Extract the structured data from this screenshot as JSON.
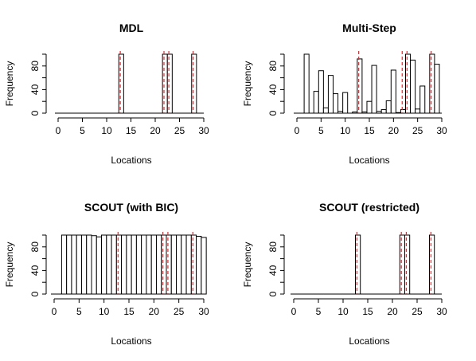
{
  "chart_data": [
    {
      "type": "bar",
      "title": "MDL",
      "xlabel": "Locations",
      "ylabel": "Frequency",
      "xlim": [
        0,
        30
      ],
      "ylim": [
        0,
        100
      ],
      "xticks": [
        "0",
        "5",
        "10",
        "15",
        "20",
        "25",
        "30"
      ],
      "yticks": [
        "0",
        "40",
        "80"
      ],
      "bars": [
        {
          "x": 13,
          "value": 100
        },
        {
          "x": 22,
          "value": 100
        },
        {
          "x": 23,
          "value": 100
        },
        {
          "x": 28,
          "value": 100
        }
      ],
      "true_locations": [
        13,
        22,
        23,
        28
      ],
      "marker_color": "#e8262b"
    },
    {
      "type": "bar",
      "title": "Multi-Step",
      "xlabel": "Locations",
      "ylabel": "Frequency",
      "xlim": [
        0,
        30
      ],
      "ylim": [
        0,
        100
      ],
      "xticks": [
        "0",
        "5",
        "10",
        "15",
        "20",
        "25",
        "30"
      ],
      "yticks": [
        "0",
        "40",
        "80"
      ],
      "bars": [
        {
          "x": 2,
          "value": 100
        },
        {
          "x": 4,
          "value": 37
        },
        {
          "x": 5,
          "value": 72
        },
        {
          "x": 6,
          "value": 9
        },
        {
          "x": 7,
          "value": 64
        },
        {
          "x": 8,
          "value": 33
        },
        {
          "x": 9,
          "value": 3
        },
        {
          "x": 10,
          "value": 35
        },
        {
          "x": 12,
          "value": 2
        },
        {
          "x": 13,
          "value": 92
        },
        {
          "x": 14,
          "value": 2
        },
        {
          "x": 15,
          "value": 20
        },
        {
          "x": 16,
          "value": 81
        },
        {
          "x": 17,
          "value": 3
        },
        {
          "x": 18,
          "value": 6
        },
        {
          "x": 19,
          "value": 21
        },
        {
          "x": 20,
          "value": 73
        },
        {
          "x": 21,
          "value": 1
        },
        {
          "x": 22,
          "value": 6
        },
        {
          "x": 23,
          "value": 100
        },
        {
          "x": 24,
          "value": 90
        },
        {
          "x": 25,
          "value": 7
        },
        {
          "x": 26,
          "value": 46
        },
        {
          "x": 28,
          "value": 100
        },
        {
          "x": 29,
          "value": 83
        }
      ],
      "true_locations": [
        13,
        22,
        23,
        28
      ],
      "marker_color": "#e8262b"
    },
    {
      "type": "bar",
      "title": "SCOUT (with BIC)",
      "xlabel": "Locations",
      "ylabel": "Frequency",
      "xlim": [
        0,
        30
      ],
      "ylim": [
        0,
        100
      ],
      "xticks": [
        "0",
        "5",
        "10",
        "15",
        "20",
        "25",
        "30"
      ],
      "yticks": [
        "0",
        "40",
        "80"
      ],
      "bars": [
        {
          "x": 1,
          "value": 0
        },
        {
          "x": 2,
          "value": 100
        },
        {
          "x": 3,
          "value": 100
        },
        {
          "x": 4,
          "value": 100
        },
        {
          "x": 5,
          "value": 100
        },
        {
          "x": 6,
          "value": 100
        },
        {
          "x": 7,
          "value": 100
        },
        {
          "x": 8,
          "value": 99
        },
        {
          "x": 9,
          "value": 97
        },
        {
          "x": 10,
          "value": 100
        },
        {
          "x": 11,
          "value": 100
        },
        {
          "x": 12,
          "value": 100
        },
        {
          "x": 13,
          "value": 100
        },
        {
          "x": 14,
          "value": 100
        },
        {
          "x": 15,
          "value": 100
        },
        {
          "x": 16,
          "value": 100
        },
        {
          "x": 17,
          "value": 100
        },
        {
          "x": 18,
          "value": 100
        },
        {
          "x": 19,
          "value": 100
        },
        {
          "x": 20,
          "value": 100
        },
        {
          "x": 21,
          "value": 100
        },
        {
          "x": 22,
          "value": 100
        },
        {
          "x": 23,
          "value": 100
        },
        {
          "x": 24,
          "value": 100
        },
        {
          "x": 25,
          "value": 100
        },
        {
          "x": 26,
          "value": 100
        },
        {
          "x": 27,
          "value": 100
        },
        {
          "x": 28,
          "value": 100
        },
        {
          "x": 29,
          "value": 98
        },
        {
          "x": 30,
          "value": 96
        }
      ],
      "true_locations": [
        13,
        22,
        23,
        28
      ],
      "marker_color": "#e8262b"
    },
    {
      "type": "bar",
      "title": "SCOUT (restricted)",
      "xlabel": "Locations",
      "ylabel": "Frequency",
      "xlim": [
        0,
        30
      ],
      "ylim": [
        0,
        100
      ],
      "xticks": [
        "0",
        "5",
        "10",
        "15",
        "20",
        "25",
        "30"
      ],
      "yticks": [
        "0",
        "40",
        "80"
      ],
      "bars": [
        {
          "x": 13,
          "value": 100
        },
        {
          "x": 22,
          "value": 100
        },
        {
          "x": 23,
          "value": 100
        },
        {
          "x": 28,
          "value": 100
        }
      ],
      "true_locations": [
        13,
        22,
        23,
        28
      ],
      "marker_color": "#e8262b"
    }
  ]
}
